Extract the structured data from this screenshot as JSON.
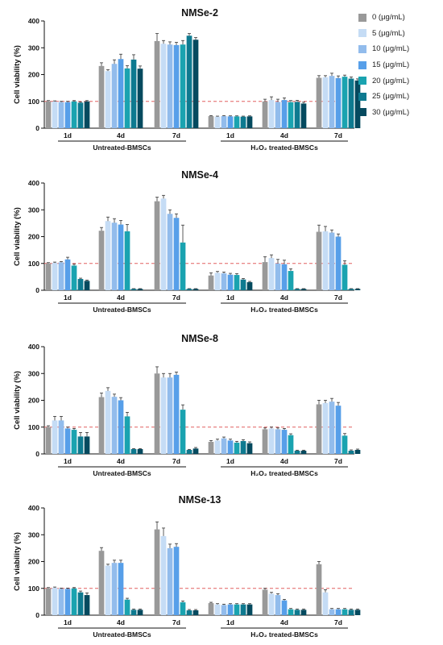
{
  "legend": {
    "items": [
      {
        "label": "0 (μg/mL)",
        "color": "#999999"
      },
      {
        "label": "5 (μg/mL)",
        "color": "#c5dcf5"
      },
      {
        "label": "10 (μg/mL)",
        "color": "#92bcec"
      },
      {
        "label": "15 (μg/mL)",
        "color": "#579fe9"
      },
      {
        "label": "20 (μg/mL)",
        "color": "#1aa3b0"
      },
      {
        "label": "25 (μg/mL)",
        "color": "#0e7a90"
      },
      {
        "label": "30 (μg/mL)",
        "color": "#054a5f"
      }
    ]
  },
  "chart_data": [
    {
      "type": "bar",
      "title": "NMSe-2",
      "ylabel": "Cell viability (%)",
      "ylim": [
        0,
        400
      ],
      "yticks": [
        0,
        100,
        200,
        300,
        400
      ],
      "reference_line": 100,
      "groups": [
        "Untreated-BMSCs",
        "H₂O₂ treated-BMSCs"
      ],
      "categories": [
        "1d",
        "4d",
        "7d",
        "1d",
        "4d",
        "7d"
      ],
      "series": [
        {
          "name": "0 (μg/mL)",
          "values": [
            100,
            232,
            325,
            45,
            100,
            188
          ],
          "errors": [
            3,
            12,
            28,
            2,
            8,
            8
          ]
        },
        {
          "name": "5 (μg/mL)",
          "values": [
            99,
            213,
            315,
            43,
            105,
            190
          ],
          "errors": [
            3,
            5,
            12,
            2,
            12,
            6
          ]
        },
        {
          "name": "10 (μg/mL)",
          "values": [
            97,
            240,
            312,
            45,
            98,
            195
          ],
          "errors": [
            3,
            15,
            10,
            2,
            10,
            10
          ]
        },
        {
          "name": "15 (μg/mL)",
          "values": [
            97,
            258,
            310,
            44,
            105,
            187
          ],
          "errors": [
            3,
            18,
            10,
            2,
            8,
            8
          ]
        },
        {
          "name": "20 (μg/mL)",
          "values": [
            100,
            223,
            312,
            44,
            97,
            192
          ],
          "errors": [
            3,
            10,
            15,
            2,
            6,
            6
          ]
        },
        {
          "name": "25 (μg/mL)",
          "values": [
            95,
            256,
            345,
            43,
            98,
            185
          ],
          "errors": [
            3,
            18,
            8,
            2,
            6,
            6
          ]
        },
        {
          "name": "30 (μg/mL)",
          "values": [
            100,
            222,
            330,
            44,
            92,
            178
          ],
          "errors": [
            3,
            10,
            8,
            2,
            5,
            6
          ]
        }
      ]
    },
    {
      "type": "bar",
      "title": "NMSe-4",
      "ylabel": "Cell viability (%)",
      "ylim": [
        0,
        400
      ],
      "yticks": [
        0,
        100,
        200,
        300,
        400
      ],
      "reference_line": 100,
      "groups": [
        "Untreated-BMSCs",
        "H₂O₂ treated-BMSCs"
      ],
      "categories": [
        "1d",
        "4d",
        "7d",
        "1d",
        "4d",
        "7d"
      ],
      "series": [
        {
          "name": "0 (μg/mL)",
          "values": [
            100,
            222,
            332,
            55,
            105,
            218
          ],
          "errors": [
            3,
            12,
            15,
            10,
            20,
            25
          ]
        },
        {
          "name": "5 (μg/mL)",
          "values": [
            102,
            258,
            342,
            65,
            120,
            220
          ],
          "errors": [
            3,
            15,
            12,
            5,
            12,
            18
          ]
        },
        {
          "name": "10 (μg/mL)",
          "values": [
            104,
            252,
            285,
            63,
            100,
            215
          ],
          "errors": [
            3,
            15,
            15,
            5,
            15,
            10
          ]
        },
        {
          "name": "15 (μg/mL)",
          "values": [
            115,
            245,
            270,
            58,
            97,
            200
          ],
          "errors": [
            8,
            15,
            15,
            5,
            15,
            10
          ]
        },
        {
          "name": "20 (μg/mL)",
          "values": [
            92,
            220,
            178,
            57,
            72,
            95
          ],
          "errors": [
            5,
            25,
            65,
            5,
            8,
            15
          ]
        },
        {
          "name": "25 (μg/mL)",
          "values": [
            42,
            5,
            5,
            40,
            5,
            5
          ],
          "errors": [
            3,
            1,
            1,
            4,
            1,
            1
          ]
        },
        {
          "name": "30 (μg/mL)",
          "values": [
            35,
            5,
            5,
            30,
            5,
            5
          ],
          "errors": [
            3,
            1,
            1,
            3,
            1,
            1
          ]
        }
      ]
    },
    {
      "type": "bar",
      "title": "NMSe-8",
      "ylabel": "Cell viability (%)",
      "ylim": [
        0,
        400
      ],
      "yticks": [
        0,
        100,
        200,
        300,
        400
      ],
      "reference_line": 100,
      "groups": [
        "Untreated-BMSCs",
        "H₂O₂ treated-BMSCs"
      ],
      "categories": [
        "1d",
        "4d",
        "7d",
        "1d",
        "4d",
        "7d"
      ],
      "series": [
        {
          "name": "0 (μg/mL)",
          "values": [
            100,
            212,
            300,
            45,
            92,
            185
          ],
          "errors": [
            5,
            15,
            25,
            5,
            5,
            15
          ]
        },
        {
          "name": "5 (μg/mL)",
          "values": [
            125,
            235,
            285,
            50,
            95,
            190
          ],
          "errors": [
            15,
            12,
            15,
            5,
            5,
            10
          ]
        },
        {
          "name": "10 (μg/mL)",
          "values": [
            125,
            213,
            285,
            58,
            92,
            195
          ],
          "errors": [
            15,
            10,
            15,
            5,
            5,
            12
          ]
        },
        {
          "name": "15 (μg/mL)",
          "values": [
            95,
            200,
            295,
            50,
            90,
            180
          ],
          "errors": [
            5,
            10,
            10,
            5,
            5,
            12
          ]
        },
        {
          "name": "20 (μg/mL)",
          "values": [
            90,
            140,
            165,
            42,
            70,
            68
          ],
          "errors": [
            5,
            15,
            18,
            5,
            5,
            8
          ]
        },
        {
          "name": "25 (μg/mL)",
          "values": [
            65,
            18,
            15,
            48,
            12,
            12
          ],
          "errors": [
            15,
            2,
            2,
            5,
            2,
            3
          ]
        },
        {
          "name": "30 (μg/mL)",
          "values": [
            65,
            18,
            20,
            40,
            12,
            15
          ],
          "errors": [
            15,
            2,
            4,
            5,
            2,
            3
          ]
        }
      ]
    },
    {
      "type": "bar",
      "title": "NMSe-13",
      "ylabel": "Cell viability (%)",
      "ylim": [
        0,
        400
      ],
      "yticks": [
        0,
        100,
        200,
        300,
        400
      ],
      "reference_line": 100,
      "groups": [
        "Untreated-BMSCs",
        "H₂O₂ treated-BMSCs"
      ],
      "categories": [
        "1d",
        "4d",
        "7d",
        "1d",
        "4d",
        "7d"
      ],
      "series": [
        {
          "name": "0 (μg/mL)",
          "values": [
            100,
            240,
            320,
            45,
            95,
            190
          ],
          "errors": [
            3,
            12,
            28,
            3,
            5,
            10
          ]
        },
        {
          "name": "5 (μg/mL)",
          "values": [
            102,
            185,
            295,
            40,
            80,
            85
          ],
          "errors": [
            3,
            5,
            30,
            3,
            5,
            10
          ]
        },
        {
          "name": "10 (μg/mL)",
          "values": [
            98,
            195,
            250,
            38,
            75,
            22
          ],
          "errors": [
            3,
            10,
            15,
            3,
            5,
            3
          ]
        },
        {
          "name": "15 (μg/mL)",
          "values": [
            98,
            195,
            255,
            40,
            55,
            22
          ],
          "errors": [
            3,
            10,
            12,
            3,
            4,
            3
          ]
        },
        {
          "name": "20 (μg/mL)",
          "values": [
            100,
            58,
            48,
            40,
            22,
            22
          ],
          "errors": [
            3,
            5,
            5,
            3,
            3,
            3
          ]
        },
        {
          "name": "25 (μg/mL)",
          "values": [
            85,
            20,
            18,
            40,
            20,
            20
          ],
          "errors": [
            5,
            3,
            3,
            3,
            3,
            3
          ]
        },
        {
          "name": "30 (μg/mL)",
          "values": [
            75,
            20,
            18,
            40,
            20,
            20
          ],
          "errors": [
            8,
            3,
            3,
            3,
            3,
            3
          ]
        }
      ]
    }
  ]
}
